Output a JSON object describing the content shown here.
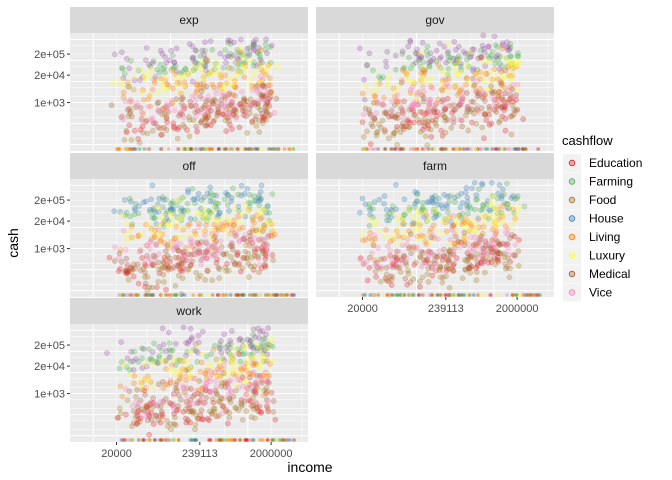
{
  "chart_data": {
    "type": "scatter",
    "xlabel": "income",
    "ylabel": "cash",
    "x_scale": "log10",
    "y_scale": "log10",
    "xlim": [
      5000,
      6000000
    ],
    "ylim": [
      5,
      2000000
    ],
    "x_ticks": [
      20000,
      239113,
      2000000
    ],
    "x_tick_labels": [
      "20000",
      "239113",
      "2000000"
    ],
    "y_ticks": [
      1000,
      20000,
      200000
    ],
    "y_tick_labels": [
      "1e+03",
      "2e+04",
      "2e+05"
    ],
    "grid": true,
    "legend": {
      "title": "cashflow",
      "position": "right",
      "entries": [
        "Education",
        "Farming",
        "Food",
        "House",
        "Living",
        "Luxury",
        "Medical",
        "Vice"
      ]
    },
    "facets": [
      {
        "label": "exp"
      },
      {
        "label": "gov"
      },
      {
        "label": "off"
      },
      {
        "label": "farm"
      },
      {
        "label": "work"
      }
    ],
    "series": [
      {
        "name": "Education",
        "color": "#E41A1C",
        "y_low": 60,
        "y_high": 600,
        "slope": 0.45
      },
      {
        "name": "Farming",
        "color": "#4DAF4A",
        "y_low": 30000,
        "y_high": 200000,
        "slope": 0.35
      },
      {
        "name": "Food",
        "color": "#A6761D",
        "y_low": 40,
        "y_high": 400,
        "slope": 0.5
      },
      {
        "name": "House",
        "color": "#377EB8",
        "y_low": 50000,
        "y_high": 500000,
        "slope": 0.4
      },
      {
        "name": "Living",
        "color": "#FF7F00",
        "y_low": 2000,
        "y_high": 20000,
        "slope": 0.4
      },
      {
        "name": "Luxury",
        "color": "#FFFF33",
        "y_low": 5000,
        "y_high": 50000,
        "slope": 0.4
      },
      {
        "name": "Medical",
        "color": "#A65628",
        "y_low": 200,
        "y_high": 2000,
        "slope": 0.45
      },
      {
        "name": "Vice",
        "color": "#F781BF",
        "y_low": 300,
        "y_high": 3000,
        "slope": 0.45
      }
    ],
    "income_range": [
      20000,
      2000000
    ]
  },
  "colors": {
    "panel_background": "#EBEBEB",
    "grid_major": "#FFFFFF",
    "strip_background": "#D9D9D9",
    "house_alt": "#984EA3"
  }
}
